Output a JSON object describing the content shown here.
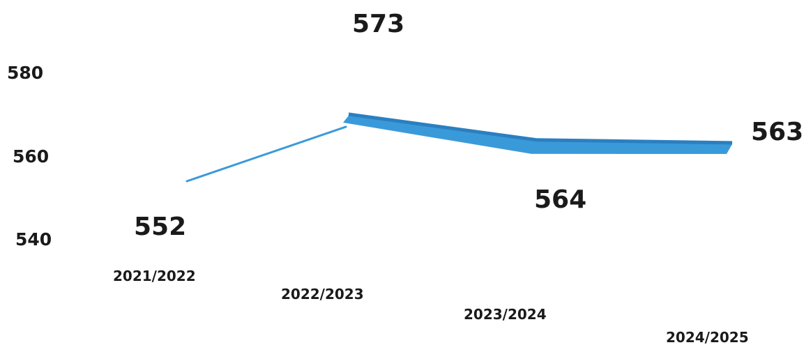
{
  "chart_data": {
    "type": "line",
    "categories": [
      "2021/2022",
      "2022/2023",
      "2023/2024",
      "2024/2025"
    ],
    "series": [
      {
        "values": [
          552,
          573,
          564,
          563
        ]
      }
    ],
    "data_labels": [
      "552",
      "573",
      "564",
      "563"
    ],
    "y_ticks": [
      "580",
      "560",
      "540"
    ],
    "title": "",
    "xlabel": "",
    "ylabel": "",
    "grid": false,
    "legend": "none",
    "colors": {
      "line": "#3a9ad9",
      "line_dark": "#2b7fc0",
      "text": "#1a1a1a"
    }
  }
}
